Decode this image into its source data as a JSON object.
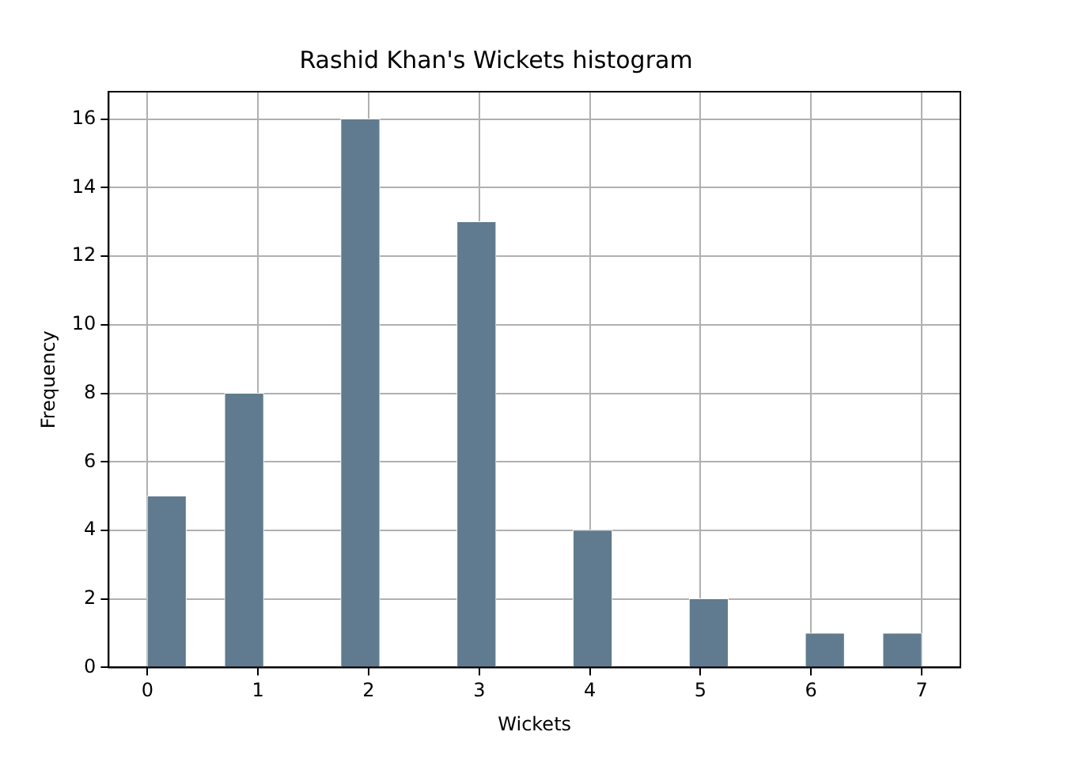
{
  "chart_data": {
    "type": "histogram",
    "title": "Rashid Khan's Wickets histogram",
    "xlabel": "Wickets",
    "ylabel": "Frequency",
    "bins": [
      0,
      0.35,
      0.7,
      1.05,
      1.4,
      1.75,
      2.1,
      2.45,
      2.8,
      3.15,
      3.5,
      3.85,
      4.2,
      4.55,
      4.9,
      5.25,
      5.6,
      5.95,
      6.3,
      6.65,
      7
    ],
    "values": [
      5,
      0,
      8,
      0,
      0,
      16,
      0,
      0,
      13,
      0,
      0,
      4,
      0,
      0,
      2,
      0,
      0,
      1,
      0,
      1
    ],
    "color": "#607b8f",
    "xlim": [
      -0.35,
      7.35
    ],
    "xticks": [
      0,
      1,
      2,
      3,
      4,
      5,
      6,
      7
    ],
    "ylim": [
      0,
      16.8
    ],
    "yticks": [
      0,
      2,
      4,
      6,
      8,
      10,
      12,
      14,
      16
    ],
    "grid": true
  }
}
